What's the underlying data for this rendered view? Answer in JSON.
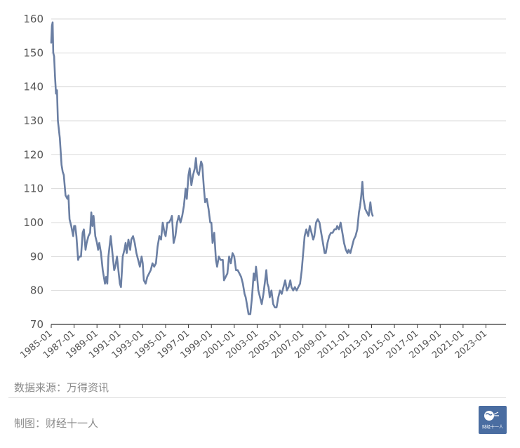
{
  "chart_data": {
    "type": "line",
    "title": "",
    "xlabel": "",
    "ylabel": "",
    "ylim": [
      70,
      160
    ],
    "yticks": [
      70,
      80,
      90,
      100,
      110,
      120,
      130,
      140,
      150,
      160
    ],
    "xlim": [
      1985.0,
      2024.75
    ],
    "xticks": [
      "1985-01",
      "1987-01",
      "1989-01",
      "1991-01",
      "1993-01",
      "1995-01",
      "1997-01",
      "1999-01",
      "2001-01",
      "2003-01",
      "2005-01",
      "2007-01",
      "2009-01",
      "2011-01",
      "2013-01",
      "2015-01",
      "2017-01",
      "2019-01",
      "2021-01",
      "2023-01"
    ],
    "grid": "horizontal",
    "legend": "none",
    "series": [
      {
        "color": "#6b7fa3",
        "points": [
          [
            1985.0,
            153
          ],
          [
            1985.06,
            158
          ],
          [
            1985.12,
            159
          ],
          [
            1985.18,
            150
          ],
          [
            1985.25,
            149
          ],
          [
            1985.33,
            143
          ],
          [
            1985.42,
            138
          ],
          [
            1985.5,
            139
          ],
          [
            1985.58,
            130
          ],
          [
            1985.75,
            125
          ],
          [
            1985.9,
            117
          ],
          [
            1986.0,
            115
          ],
          [
            1986.1,
            114
          ],
          [
            1986.25,
            108
          ],
          [
            1986.42,
            107
          ],
          [
            1986.5,
            108
          ],
          [
            1986.6,
            101
          ],
          [
            1986.75,
            99
          ],
          [
            1986.92,
            96
          ],
          [
            1987.0,
            99
          ],
          [
            1987.1,
            99
          ],
          [
            1987.2,
            96
          ],
          [
            1987.35,
            89
          ],
          [
            1987.45,
            90
          ],
          [
            1987.6,
            90
          ],
          [
            1987.75,
            97
          ],
          [
            1987.85,
            98
          ],
          [
            1988.0,
            92
          ],
          [
            1988.1,
            94
          ],
          [
            1988.25,
            96
          ],
          [
            1988.4,
            97
          ],
          [
            1988.5,
            103
          ],
          [
            1988.6,
            99
          ],
          [
            1988.7,
            102
          ],
          [
            1988.85,
            96
          ],
          [
            1989.0,
            94
          ],
          [
            1989.1,
            92
          ],
          [
            1989.2,
            94
          ],
          [
            1989.35,
            91
          ],
          [
            1989.5,
            86
          ],
          [
            1989.6,
            84
          ],
          [
            1989.7,
            82
          ],
          [
            1989.8,
            84
          ],
          [
            1989.9,
            82
          ],
          [
            1990.0,
            90
          ],
          [
            1990.1,
            93
          ],
          [
            1990.2,
            96
          ],
          [
            1990.35,
            91
          ],
          [
            1990.5,
            86
          ],
          [
            1990.6,
            87
          ],
          [
            1990.75,
            90
          ],
          [
            1990.9,
            85
          ],
          [
            1991.0,
            82
          ],
          [
            1991.1,
            81
          ],
          [
            1991.25,
            90
          ],
          [
            1991.4,
            92
          ],
          [
            1991.5,
            94
          ],
          [
            1991.6,
            91
          ],
          [
            1991.75,
            95
          ],
          [
            1991.9,
            92
          ],
          [
            1992.0,
            95
          ],
          [
            1992.15,
            96
          ],
          [
            1992.3,
            94
          ],
          [
            1992.45,
            91
          ],
          [
            1992.6,
            89
          ],
          [
            1992.75,
            87
          ],
          [
            1992.9,
            90
          ],
          [
            1993.0,
            88
          ],
          [
            1993.1,
            83
          ],
          [
            1993.25,
            82
          ],
          [
            1993.4,
            84
          ],
          [
            1993.55,
            85
          ],
          [
            1993.7,
            86
          ],
          [
            1993.85,
            88
          ],
          [
            1994.0,
            87
          ],
          [
            1994.15,
            88
          ],
          [
            1994.3,
            93
          ],
          [
            1994.45,
            96
          ],
          [
            1994.6,
            95
          ],
          [
            1994.75,
            100
          ],
          [
            1994.9,
            97
          ],
          [
            1995.0,
            96
          ],
          [
            1995.15,
            100
          ],
          [
            1995.3,
            100
          ],
          [
            1995.45,
            101
          ],
          [
            1995.55,
            102
          ],
          [
            1995.7,
            94
          ],
          [
            1995.85,
            96
          ],
          [
            1996.0,
            100
          ],
          [
            1996.15,
            102
          ],
          [
            1996.3,
            100
          ],
          [
            1996.45,
            102
          ],
          [
            1996.6,
            105
          ],
          [
            1996.75,
            110
          ],
          [
            1996.85,
            107
          ],
          [
            1997.0,
            114
          ],
          [
            1997.1,
            116
          ],
          [
            1997.25,
            111
          ],
          [
            1997.4,
            114
          ],
          [
            1997.55,
            116
          ],
          [
            1997.65,
            119
          ],
          [
            1997.75,
            115
          ],
          [
            1997.9,
            114
          ],
          [
            1998.0,
            116
          ],
          [
            1998.1,
            118
          ],
          [
            1998.2,
            117
          ],
          [
            1998.35,
            110
          ],
          [
            1998.45,
            106
          ],
          [
            1998.6,
            107
          ],
          [
            1998.75,
            104
          ],
          [
            1998.9,
            100
          ],
          [
            1999.0,
            100
          ],
          [
            1999.1,
            94
          ],
          [
            1999.25,
            97
          ],
          [
            1999.4,
            89
          ],
          [
            1999.5,
            87
          ],
          [
            1999.65,
            90
          ],
          [
            1999.8,
            89
          ],
          [
            2000.0,
            89
          ],
          [
            2000.1,
            83
          ],
          [
            2000.25,
            84
          ],
          [
            2000.4,
            85
          ],
          [
            2000.55,
            90
          ],
          [
            2000.7,
            88
          ],
          [
            2000.85,
            91
          ],
          [
            2001.0,
            90
          ],
          [
            2001.15,
            86
          ],
          [
            2001.3,
            86
          ],
          [
            2001.45,
            85
          ],
          [
            2001.6,
            84
          ],
          [
            2001.75,
            82
          ],
          [
            2001.9,
            79
          ],
          [
            2002.0,
            78
          ],
          [
            2002.1,
            76
          ],
          [
            2002.25,
            73
          ],
          [
            2002.4,
            73
          ],
          [
            2002.55,
            78
          ],
          [
            2002.7,
            85
          ],
          [
            2002.8,
            83
          ],
          [
            2002.9,
            87
          ],
          [
            2003.0,
            84
          ],
          [
            2003.1,
            80
          ],
          [
            2003.25,
            78
          ],
          [
            2003.4,
            76
          ],
          [
            2003.55,
            79
          ],
          [
            2003.7,
            83
          ],
          [
            2003.8,
            86
          ],
          [
            2003.9,
            82
          ],
          [
            2004.0,
            81
          ],
          [
            2004.1,
            78
          ],
          [
            2004.25,
            80
          ],
          [
            2004.4,
            76
          ],
          [
            2004.55,
            75
          ],
          [
            2004.7,
            75
          ],
          [
            2004.85,
            78
          ],
          [
            2005.0,
            80
          ],
          [
            2005.15,
            79
          ],
          [
            2005.3,
            81
          ],
          [
            2005.45,
            83
          ],
          [
            2005.6,
            80
          ],
          [
            2005.75,
            81
          ],
          [
            2005.9,
            83
          ],
          [
            2006.0,
            81
          ],
          [
            2006.15,
            80
          ],
          [
            2006.3,
            81
          ],
          [
            2006.45,
            80
          ],
          [
            2006.6,
            81
          ],
          [
            2006.75,
            82
          ],
          [
            2006.9,
            86
          ],
          [
            2007.0,
            90
          ],
          [
            2007.15,
            96
          ],
          [
            2007.3,
            98
          ],
          [
            2007.45,
            96
          ],
          [
            2007.6,
            99
          ],
          [
            2007.75,
            97
          ],
          [
            2007.9,
            95
          ],
          [
            2008.0,
            96
          ],
          [
            2008.15,
            100
          ],
          [
            2008.3,
            101
          ],
          [
            2008.45,
            100
          ],
          [
            2008.6,
            97
          ],
          [
            2008.75,
            94
          ],
          [
            2008.9,
            91
          ],
          [
            2009.0,
            91
          ],
          [
            2009.15,
            94
          ],
          [
            2009.3,
            96
          ],
          [
            2009.45,
            97
          ],
          [
            2009.6,
            97
          ],
          [
            2009.75,
            98
          ],
          [
            2009.9,
            98
          ],
          [
            2010.0,
            99
          ],
          [
            2010.15,
            98
          ],
          [
            2010.3,
            100
          ],
          [
            2010.45,
            97
          ],
          [
            2010.6,
            94
          ],
          [
            2010.75,
            92
          ],
          [
            2010.9,
            91
          ],
          [
            2011.0,
            92
          ],
          [
            2011.15,
            91
          ],
          [
            2011.3,
            93
          ],
          [
            2011.45,
            95
          ],
          [
            2011.6,
            96
          ],
          [
            2011.75,
            98
          ],
          [
            2011.9,
            103
          ],
          [
            2012.0,
            105
          ],
          [
            2012.1,
            108
          ],
          [
            2012.2,
            112
          ],
          [
            2012.3,
            107
          ],
          [
            2012.45,
            104
          ],
          [
            2012.6,
            103
          ],
          [
            2012.75,
            102
          ],
          [
            2012.9,
            106
          ],
          [
            2013.0,
            103
          ],
          [
            2013.1,
            102
          ]
        ]
      }
    ]
  },
  "footer": {
    "source": "数据来源：万得资讯",
    "maker": "制图：财经十一人",
    "logo_text": "财经十一人"
  },
  "colors": {
    "line": "#6b7fa3",
    "grid": "#d9d9d9",
    "axis": "#333333",
    "tick_text": "#555555",
    "logo_bg": "#4a6da1"
  }
}
